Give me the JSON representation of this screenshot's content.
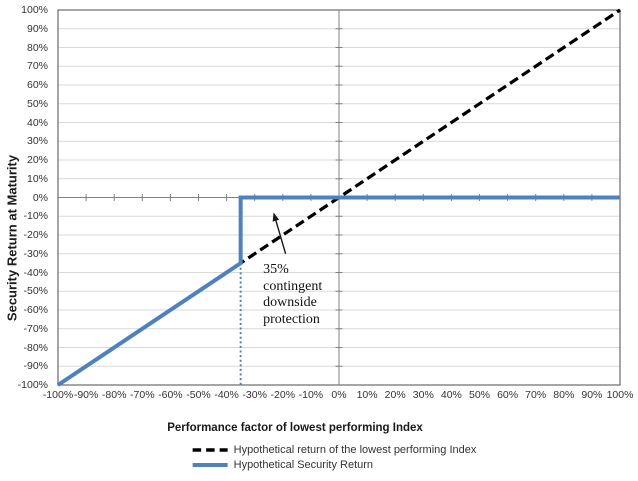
{
  "chart_data": {
    "type": "line",
    "title": "",
    "xlabel": "Performance factor of lowest performing Index",
    "ylabel": "Security Return at Maturity",
    "xlim": [
      -100,
      100
    ],
    "ylim": [
      -100,
      100
    ],
    "tick_step": 10,
    "tick_suffix": "%",
    "grid": "horizontal gridlines every 10%; axes cross at 0%; labels positioned low",
    "legend_position": "bottom",
    "x_tick_labels": [
      "-100%",
      "-90%",
      "-80%",
      "-70%",
      "-60%",
      "-50%",
      "-40%",
      "-30%",
      "-20%",
      "-10%",
      "0%",
      "10%",
      "20%",
      "30%",
      "40%",
      "50%",
      "60%",
      "70%",
      "80%",
      "90%",
      "100%"
    ],
    "y_tick_labels": [
      "100%",
      "90%",
      "80%",
      "70%",
      "60%",
      "50%",
      "40%",
      "30%",
      "20%",
      "10%",
      "0%",
      "-10%",
      "-20%",
      "-30%",
      "-40%",
      "-50%",
      "-60%",
      "-70%",
      "-80%",
      "-90%",
      "-100%"
    ],
    "series": [
      {
        "name": "Hypothetical return of the lowest performing Index",
        "style": "dashed",
        "color": "#000000",
        "width": 3.2,
        "points": [
          [
            -100,
            -100
          ],
          [
            100,
            100
          ]
        ]
      },
      {
        "name": "Hypothetical Security Return",
        "style": "solid",
        "color": "#4F81BD",
        "width": 4,
        "points": [
          [
            -100,
            -100
          ],
          [
            -35,
            -35
          ],
          [
            -35,
            0
          ],
          [
            100,
            0
          ]
        ]
      }
    ],
    "buffer_line": {
      "style": "dotted",
      "color": "#4F81BD",
      "width": 2,
      "points": [
        [
          -35,
          -35
        ],
        [
          -35,
          -100
        ]
      ]
    },
    "annotation": {
      "text_lines": [
        "35%",
        "contingent",
        "downside",
        "protection"
      ],
      "text_pos": [
        -27,
        -34.5
      ],
      "arrow_from": [
        -19,
        -30
      ],
      "arrow_to": [
        -23.3,
        -8
      ],
      "arrow_color": "#1a1a1a"
    },
    "colors": {
      "grid": "#D9D9D9",
      "axis": "#808080",
      "border": "#6A6A6A",
      "tick_text": "#333333",
      "title_text": "#1A1A1A"
    }
  }
}
